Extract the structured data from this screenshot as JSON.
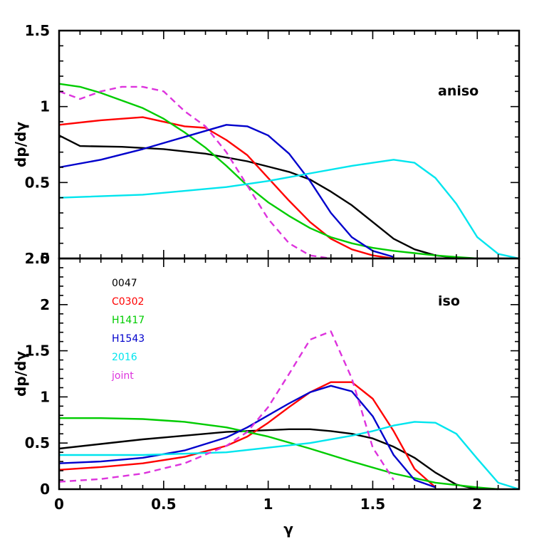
{
  "chart_data": [
    {
      "type": "line",
      "panel": "top",
      "panel_label": "aniso",
      "xlabel": "γ",
      "ylabel": "dp/dγ",
      "xlim": [
        0,
        2.2
      ],
      "ylim": [
        0,
        1.5
      ],
      "x_ticks": [
        0,
        0.5,
        1,
        1.5,
        2
      ],
      "x_tick_labels": [
        "0",
        "0.5",
        "1",
        "1.5",
        "2"
      ],
      "y_ticks": [
        0,
        0.5,
        1,
        1.5
      ],
      "y_tick_labels": [
        "0",
        "0.5",
        "1",
        "1.5"
      ],
      "series": [
        {
          "name": "0047",
          "color": "#000000",
          "dash": false,
          "x": [
            0,
            0.1,
            0.3,
            0.5,
            0.7,
            0.9,
            1.1,
            1.2,
            1.3,
            1.4,
            1.5,
            1.6,
            1.7,
            1.8,
            1.9,
            2.0
          ],
          "y": [
            0.81,
            0.74,
            0.735,
            0.72,
            0.69,
            0.64,
            0.57,
            0.52,
            0.44,
            0.35,
            0.24,
            0.13,
            0.06,
            0.02,
            0.005,
            0
          ]
        },
        {
          "name": "C0302",
          "color": "#ff0000",
          "dash": false,
          "x": [
            0,
            0.2,
            0.4,
            0.6,
            0.7,
            0.8,
            0.9,
            1.0,
            1.1,
            1.2,
            1.3,
            1.4,
            1.5,
            1.6
          ],
          "y": [
            0.88,
            0.91,
            0.93,
            0.87,
            0.86,
            0.78,
            0.68,
            0.53,
            0.38,
            0.24,
            0.13,
            0.06,
            0.02,
            0
          ]
        },
        {
          "name": "H1417",
          "color": "#00cc00",
          "dash": false,
          "x": [
            0,
            0.1,
            0.2,
            0.3,
            0.4,
            0.5,
            0.6,
            0.7,
            0.8,
            0.9,
            1.0,
            1.1,
            1.2,
            1.3,
            1.4,
            1.5,
            1.6,
            1.7,
            1.8,
            1.9,
            2.0
          ],
          "y": [
            1.15,
            1.13,
            1.09,
            1.04,
            0.99,
            0.92,
            0.83,
            0.73,
            0.61,
            0.48,
            0.37,
            0.28,
            0.2,
            0.14,
            0.1,
            0.07,
            0.05,
            0.035,
            0.02,
            0.01,
            0
          ]
        },
        {
          "name": "H1543",
          "color": "#0000cc",
          "dash": false,
          "x": [
            0,
            0.2,
            0.4,
            0.6,
            0.8,
            0.9,
            1.0,
            1.1,
            1.2,
            1.3,
            1.4,
            1.5,
            1.6
          ],
          "y": [
            0.6,
            0.65,
            0.72,
            0.8,
            0.88,
            0.87,
            0.81,
            0.69,
            0.51,
            0.3,
            0.14,
            0.05,
            0.01
          ]
        },
        {
          "name": "2016",
          "color": "#00e5ee",
          "dash": false,
          "x": [
            0,
            0.4,
            0.8,
            1.0,
            1.2,
            1.4,
            1.5,
            1.6,
            1.7,
            1.8,
            1.9,
            2.0,
            2.1,
            2.2
          ],
          "y": [
            0.4,
            0.42,
            0.47,
            0.51,
            0.56,
            0.61,
            0.63,
            0.65,
            0.63,
            0.53,
            0.36,
            0.14,
            0.03,
            0
          ]
        },
        {
          "name": "joint",
          "color": "#dd33dd",
          "dash": true,
          "x": [
            0,
            0.1,
            0.2,
            0.3,
            0.4,
            0.5,
            0.6,
            0.7,
            0.8,
            0.9,
            1.0,
            1.1,
            1.2,
            1.3
          ],
          "y": [
            1.1,
            1.05,
            1.1,
            1.13,
            1.13,
            1.1,
            0.97,
            0.87,
            0.7,
            0.48,
            0.26,
            0.1,
            0.02,
            0
          ]
        }
      ]
    },
    {
      "type": "line",
      "panel": "bottom",
      "panel_label": "iso",
      "xlabel": "γ",
      "ylabel": "dp/dγ",
      "xlim": [
        0,
        2.2
      ],
      "ylim": [
        0,
        2.5
      ],
      "x_ticks": [
        0,
        0.5,
        1,
        1.5,
        2
      ],
      "x_tick_labels": [
        "0",
        "0.5",
        "1",
        "1.5",
        "2"
      ],
      "y_ticks": [
        0,
        0.5,
        1,
        1.5,
        2,
        2.5
      ],
      "y_tick_labels": [
        "0",
        "0.5",
        "1",
        "1.5",
        "2",
        "2.5"
      ],
      "legend": {
        "position": "top-left",
        "entries": [
          "0047",
          "C0302",
          "H1417",
          "H1543",
          "2016",
          "joint"
        ]
      },
      "series": [
        {
          "name": "0047",
          "color": "#000000",
          "dash": false,
          "x": [
            0,
            0.2,
            0.4,
            0.6,
            0.8,
            1.0,
            1.1,
            1.2,
            1.3,
            1.4,
            1.5,
            1.6,
            1.7,
            1.8,
            1.9,
            2.0
          ],
          "y": [
            0.44,
            0.49,
            0.54,
            0.58,
            0.62,
            0.64,
            0.65,
            0.65,
            0.63,
            0.6,
            0.55,
            0.46,
            0.34,
            0.18,
            0.05,
            0
          ]
        },
        {
          "name": "C0302",
          "color": "#ff0000",
          "dash": false,
          "x": [
            0,
            0.2,
            0.4,
            0.6,
            0.8,
            0.9,
            1.0,
            1.1,
            1.2,
            1.3,
            1.4,
            1.5,
            1.6,
            1.7,
            1.8
          ],
          "y": [
            0.21,
            0.24,
            0.28,
            0.35,
            0.47,
            0.57,
            0.72,
            0.89,
            1.05,
            1.16,
            1.16,
            0.98,
            0.63,
            0.22,
            0.02
          ]
        },
        {
          "name": "H1417",
          "color": "#00cc00",
          "dash": false,
          "x": [
            0,
            0.2,
            0.4,
            0.6,
            0.8,
            1.0,
            1.2,
            1.4,
            1.6,
            1.8,
            2.0,
            2.1
          ],
          "y": [
            0.77,
            0.77,
            0.76,
            0.73,
            0.67,
            0.57,
            0.44,
            0.3,
            0.17,
            0.07,
            0.02,
            0
          ]
        },
        {
          "name": "H1543",
          "color": "#0000cc",
          "dash": false,
          "x": [
            0,
            0.2,
            0.4,
            0.6,
            0.8,
            0.9,
            1.0,
            1.1,
            1.2,
            1.3,
            1.4,
            1.5,
            1.6,
            1.7,
            1.8
          ],
          "y": [
            0.28,
            0.3,
            0.34,
            0.42,
            0.56,
            0.67,
            0.8,
            0.93,
            1.05,
            1.12,
            1.06,
            0.79,
            0.37,
            0.1,
            0.02
          ]
        },
        {
          "name": "2016",
          "color": "#00e5ee",
          "dash": false,
          "x": [
            0,
            0.4,
            0.8,
            1.0,
            1.2,
            1.4,
            1.5,
            1.6,
            1.7,
            1.8,
            1.9,
            2.0,
            2.1,
            2.2
          ],
          "y": [
            0.37,
            0.37,
            0.4,
            0.45,
            0.5,
            0.58,
            0.63,
            0.69,
            0.73,
            0.72,
            0.6,
            0.33,
            0.07,
            0
          ]
        },
        {
          "name": "joint",
          "color": "#dd33dd",
          "dash": true,
          "x": [
            0,
            0.2,
            0.4,
            0.6,
            0.8,
            0.9,
            1.0,
            1.1,
            1.2,
            1.3,
            1.4,
            1.5,
            1.6
          ],
          "y": [
            0.08,
            0.11,
            0.17,
            0.28,
            0.47,
            0.62,
            0.89,
            1.25,
            1.62,
            1.71,
            1.2,
            0.45,
            0.1
          ]
        }
      ]
    }
  ]
}
